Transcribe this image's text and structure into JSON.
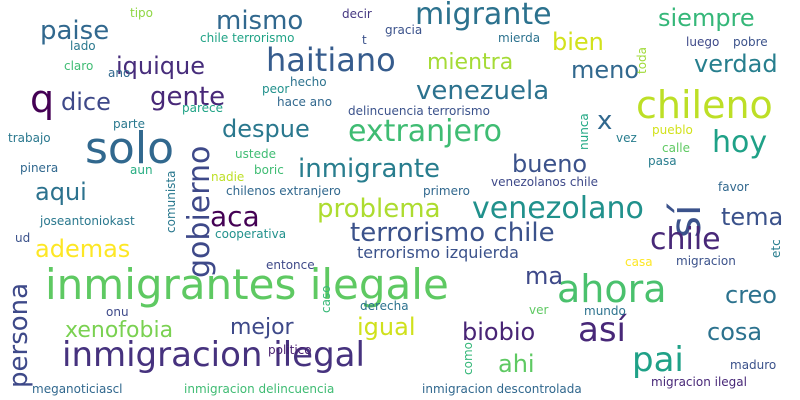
{
  "words": [
    {
      "text": "inmigrantes ilegale",
      "color": "#5ec962"
    },
    {
      "text": "inmigracion ilegal",
      "color": "#46327e"
    },
    {
      "text": "solo",
      "color": "#31688e"
    },
    {
      "text": "chileno",
      "color": "#bddf26"
    },
    {
      "text": "ahora",
      "color": "#4ac16d"
    },
    {
      "text": "así",
      "color": "#482878"
    },
    {
      "text": "sí",
      "color": "#3b528b"
    },
    {
      "text": "q",
      "color": "#440154"
    },
    {
      "text": "extranjero",
      "color": "#3fbc73"
    },
    {
      "text": "haitiano",
      "color": "#365c8d"
    },
    {
      "text": "migrante",
      "color": "#2c728e"
    },
    {
      "text": "gobierno",
      "color": "#3e4989"
    },
    {
      "text": "pai",
      "color": "#1fa187"
    },
    {
      "text": "terrorismo chile",
      "color": "#3b528b"
    },
    {
      "text": "chile",
      "color": "#482878"
    },
    {
      "text": "venezolano",
      "color": "#21918c"
    },
    {
      "text": "hoy",
      "color": "#1fa187"
    },
    {
      "text": "problema",
      "color": "#addc30"
    },
    {
      "text": "inmigrante",
      "color": "#287d8e"
    },
    {
      "text": "persona",
      "color": "#3e4989"
    },
    {
      "text": "venezuela",
      "color": "#2c728e"
    },
    {
      "text": "aca",
      "color": "#440154"
    },
    {
      "text": "mismo",
      "color": "#31688e"
    },
    {
      "text": "iquique",
      "color": "#472d7b"
    },
    {
      "text": "gente",
      "color": "#482878"
    },
    {
      "text": "paise",
      "color": "#31688e"
    },
    {
      "text": "dice",
      "color": "#3e4989"
    },
    {
      "text": "mientra",
      "color": "#a5db36"
    },
    {
      "text": "bien",
      "color": "#d2e21b"
    },
    {
      "text": "siempre",
      "color": "#35b779"
    },
    {
      "text": "meno",
      "color": "#31688e"
    },
    {
      "text": "verdad",
      "color": "#277f8e"
    },
    {
      "text": "despue",
      "color": "#2a788e"
    },
    {
      "text": "x",
      "color": "#31688e"
    },
    {
      "text": "bueno",
      "color": "#3b528b"
    },
    {
      "text": "aqui",
      "color": "#2c728e"
    },
    {
      "text": "ademas",
      "color": "#fde725"
    },
    {
      "text": "tema",
      "color": "#3b528b"
    },
    {
      "text": "ma",
      "color": "#3e4989"
    },
    {
      "text": "creo",
      "color": "#2c728e"
    },
    {
      "text": "xenofobia",
      "color": "#7ad151"
    },
    {
      "text": "mejor",
      "color": "#3e4989"
    },
    {
      "text": "igual",
      "color": "#d0e11c"
    },
    {
      "text": "biobio",
      "color": "#482475"
    },
    {
      "text": "cosa",
      "color": "#2c728e"
    },
    {
      "text": "ahi",
      "color": "#5ec962"
    },
    {
      "text": "terrorismo izquierda",
      "color": "#3b528b"
    },
    {
      "text": "tipo",
      "color": "#8fd744"
    },
    {
      "text": "decir",
      "color": "#453781"
    },
    {
      "text": "lado",
      "color": "#2a788e"
    },
    {
      "text": "chile terrorismo",
      "color": "#20a386"
    },
    {
      "text": "t",
      "color": "#3b528b"
    },
    {
      "text": "gracia",
      "color": "#3b528b"
    },
    {
      "text": "mierda",
      "color": "#2c728e"
    },
    {
      "text": "toda",
      "color": "#a0da39"
    },
    {
      "text": "luego",
      "color": "#3e4989"
    },
    {
      "text": "pobre",
      "color": "#3b528b"
    },
    {
      "text": "claro",
      "color": "#3fbc73"
    },
    {
      "text": "ano",
      "color": "#31688e"
    },
    {
      "text": "hecho",
      "color": "#2c728e"
    },
    {
      "text": "peor",
      "color": "#21918c"
    },
    {
      "text": "hace ano",
      "color": "#31688e"
    },
    {
      "text": "parece",
      "color": "#20a386"
    },
    {
      "text": "delincuencia terrorismo",
      "color": "#3b528b"
    },
    {
      "text": "parte",
      "color": "#2a788e"
    },
    {
      "text": "nunca",
      "color": "#22a884"
    },
    {
      "text": "pueblo",
      "color": "#d2e21b"
    },
    {
      "text": "vez",
      "color": "#287d8e"
    },
    {
      "text": "calle",
      "color": "#5ec962"
    },
    {
      "text": "pasa",
      "color": "#287d8e"
    },
    {
      "text": "trabajo",
      "color": "#2a788e"
    },
    {
      "text": "ustede",
      "color": "#3fbc73"
    },
    {
      "text": "boric",
      "color": "#3fbc73"
    },
    {
      "text": "nadie",
      "color": "#bddf26"
    },
    {
      "text": "chilenos extranjero",
      "color": "#31688e"
    },
    {
      "text": "pinera",
      "color": "#31688e"
    },
    {
      "text": "aun",
      "color": "#26ad81"
    },
    {
      "text": "comunista",
      "color": "#2a788e"
    },
    {
      "text": "primero",
      "color": "#31688e"
    },
    {
      "text": "venezolanos chile",
      "color": "#3e4989"
    },
    {
      "text": "favor",
      "color": "#31688e"
    },
    {
      "text": "joseantoniokast",
      "color": "#2a788e"
    },
    {
      "text": "cooperativa",
      "color": "#21918c"
    },
    {
      "text": "etc",
      "color": "#287d8e"
    },
    {
      "text": "ud",
      "color": "#3b528b"
    },
    {
      "text": "entonce",
      "color": "#3e4989"
    },
    {
      "text": "casa",
      "color": "#fde725"
    },
    {
      "text": "migracion",
      "color": "#3b528b"
    },
    {
      "text": "caso",
      "color": "#38b977"
    },
    {
      "text": "derecha",
      "color": "#2c728e"
    },
    {
      "text": "ver",
      "color": "#5ec962"
    },
    {
      "text": "mundo",
      "color": "#2c728e"
    },
    {
      "text": "onu",
      "color": "#3e4989"
    },
    {
      "text": "politico",
      "color": "#481f70"
    },
    {
      "text": "como",
      "color": "#35b779"
    },
    {
      "text": "maduro",
      "color": "#3b528b"
    },
    {
      "text": "meganoticiascl",
      "color": "#31688e"
    },
    {
      "text": "inmigracion delincuencia",
      "color": "#3fbc73"
    },
    {
      "text": "inmigracion descontrolada",
      "color": "#31688e"
    },
    {
      "text": "migracion ilegal",
      "color": "#482878"
    }
  ]
}
